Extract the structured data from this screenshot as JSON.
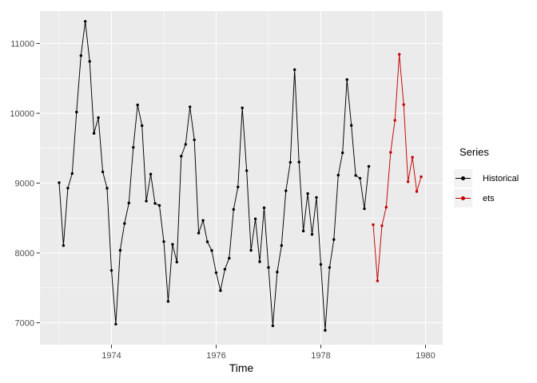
{
  "chart_data": {
    "type": "line",
    "title": "",
    "xlabel": "Time",
    "ylabel": "",
    "legend_title": "Series",
    "legend_position": "right",
    "grid": true,
    "panel_background": "#EBEBEB",
    "grid_color": "#FFFFFF",
    "tick_color": "#333333",
    "tick_label_color": "#4D4D4D",
    "legend_key_background": "#F2F2F2",
    "x_domain": [
      1972.634,
      1980.329
    ],
    "y_domain": [
      6686,
      11463
    ],
    "x_ticks": [
      1974,
      1976,
      1978,
      1980
    ],
    "x_minor_ticks": [
      1973,
      1975,
      1977,
      1979
    ],
    "y_ticks": [
      7000,
      8000,
      9000,
      10000,
      11000
    ],
    "y_minor_ticks": [
      7500,
      8500,
      9500,
      10500
    ],
    "series": [
      {
        "name": "Historical",
        "color": "#000000",
        "start_time": 1973.0,
        "points_per_year": 12,
        "values": [
          9007,
          8106,
          8928,
          9137,
          10017,
          10826,
          11317,
          10744,
          9713,
          9938,
          9161,
          8927,
          7750,
          6981,
          8038,
          8422,
          8714,
          9512,
          10120,
          9823,
          8743,
          9129,
          8710,
          8680,
          8162,
          7306,
          8124,
          7870,
          9387,
          9556,
          10093,
          9620,
          8285,
          8466,
          8160,
          8034,
          7717,
          7461,
          7767,
          7925,
          8623,
          8945,
          10078,
          9179,
          8037,
          8488,
          7874,
          8647,
          7792,
          6957,
          7726,
          8106,
          8890,
          9299,
          10625,
          9302,
          8314,
          8850,
          8265,
          8796,
          7836,
          6892,
          7791,
          8192,
          9115,
          9434,
          10484,
          9827,
          9110,
          9070,
          8633,
          9240
        ]
      },
      {
        "name": "ets",
        "color": "#C40000",
        "start_time": 1979.0,
        "points_per_year": 12,
        "values": [
          8405,
          7600,
          8390,
          8655,
          9440,
          9900,
          10845,
          10125,
          9020,
          9370,
          8880,
          9090
        ]
      }
    ]
  }
}
